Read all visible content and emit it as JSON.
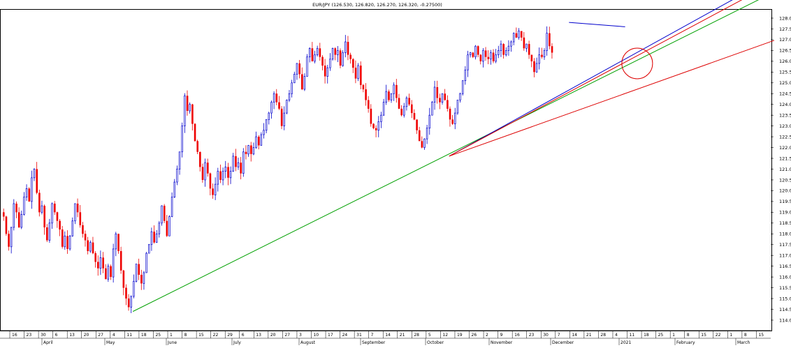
{
  "chart_data": {
    "type": "candlestick",
    "title": "EUR/JPY (126.530, 126.820, 126.270, 126.320, -0.27500)",
    "y_axis": {
      "position": "right",
      "range": [
        114.0,
        128.0
      ],
      "ticks": [
        "128.0",
        "127.5",
        "127.0",
        "126.5",
        "126.0",
        "125.5",
        "125.0",
        "124.5",
        "124.0",
        "123.5",
        "123.0",
        "122.5",
        "122.0",
        "121.5",
        "121.0",
        "120.5",
        "120.0",
        "119.5",
        "119.0",
        "118.5",
        "118.0",
        "117.5",
        "117.0",
        "116.5",
        "116.0",
        "115.5",
        "115.0",
        "114.5",
        "114.0"
      ]
    },
    "x_axis": {
      "day_ticks": [
        "16",
        "23",
        "30",
        "6",
        "13",
        "20",
        "27",
        "4",
        "11",
        "18",
        "25",
        "1",
        "8",
        "15",
        "22",
        "29",
        "6",
        "13",
        "20",
        "27",
        "3",
        "10",
        "17",
        "24",
        "31",
        "7",
        "14",
        "21",
        "28",
        "5",
        "12",
        "19",
        "26",
        "2",
        "9",
        "16",
        "23",
        "30",
        "7",
        "14",
        "21",
        "28",
        "4",
        "11",
        "18",
        "25",
        "1",
        "8",
        "15",
        "22",
        "1",
        "8",
        "15"
      ],
      "month_labels": [
        "April",
        "May",
        "June",
        "July",
        "August",
        "September",
        "October",
        "November",
        "December",
        "2021",
        "February",
        "March"
      ]
    },
    "series": [
      {
        "closes": [
          118.8,
          118.0,
          117.4,
          118.3,
          119.4,
          119.0,
          118.3,
          118.9,
          119.7,
          120.1,
          119.5,
          120.6,
          121.0,
          119.9,
          119.0,
          119.3,
          118.3,
          117.7,
          118.5,
          119.4,
          119.0,
          118.6,
          118.2,
          117.4,
          117.9,
          117.3,
          117.9,
          118.6,
          119.4,
          119.0,
          118.4,
          118.0,
          117.7,
          117.2,
          117.6,
          117.1,
          116.7,
          116.4,
          116.9,
          116.4,
          115.9,
          116.5,
          116.0,
          117.3,
          118.0,
          117.2,
          116.3,
          115.5,
          115.0,
          114.6,
          115.1,
          115.8,
          116.6,
          116.1,
          115.7,
          116.2,
          117.1,
          117.5,
          118.1,
          117.6,
          118.0,
          118.5,
          119.3,
          118.6,
          117.9,
          118.8,
          119.7,
          120.4,
          121.0,
          121.8,
          123.0,
          124.4,
          123.7,
          124.0,
          123.1,
          122.3,
          121.8,
          121.1,
          120.5,
          121.3,
          120.8,
          120.1,
          119.8,
          120.3,
          120.9,
          120.5,
          120.9,
          121.1,
          120.6,
          120.9,
          121.6,
          121.1,
          121.3,
          120.8,
          121.8,
          121.7,
          122.1,
          121.7,
          122.0,
          122.5,
          122.1,
          122.6,
          122.8,
          123.3,
          123.6,
          124.1,
          124.5,
          124.1,
          123.8,
          123.0,
          123.6,
          124.2,
          124.5,
          125.0,
          125.4,
          125.9,
          125.4,
          124.7,
          125.3,
          126.2,
          126.6,
          126.0,
          126.3,
          126.6,
          126.2,
          125.8,
          125.3,
          125.7,
          126.1,
          126.6,
          126.3,
          126.5,
          125.8,
          126.4,
          126.9,
          126.3,
          126.1,
          125.7,
          125.2,
          125.8,
          124.9,
          124.7,
          124.2,
          123.8,
          123.1,
          122.9,
          122.8,
          123.2,
          123.5,
          124.1,
          124.6,
          124.2,
          124.5,
          124.9,
          124.3,
          123.8,
          123.5,
          123.9,
          124.3,
          124.0,
          123.6,
          123.3,
          122.8,
          122.3,
          122.0,
          122.4,
          122.9,
          123.5,
          124.1,
          124.8,
          124.3,
          124.1,
          124.5,
          124.2,
          123.8,
          123.3,
          123.1,
          123.6,
          124.2,
          124.5,
          125.1,
          125.6,
          126.3,
          126.4,
          126.2,
          126.7,
          126.3,
          126.0,
          126.5,
          126.2,
          126.1,
          126.4,
          126.0,
          126.3,
          126.5,
          126.8,
          126.3,
          126.5,
          126.7,
          126.9,
          127.3,
          127.1,
          127.4,
          127.1,
          126.6,
          126.8,
          126.3,
          126.0,
          125.5,
          125.9,
          126.3,
          126.2,
          126.5,
          127.3,
          126.7,
          126.4
        ],
        "volatility": 0.35
      }
    ],
    "trendlines": [
      {
        "color": "#00a000",
        "from": {
          "bar": 51,
          "price": 114.4
        },
        "to": {
          "bar": 270,
          "price": 127.3
        }
      },
      {
        "color": "#0000cc",
        "from": {
          "bar": 175,
          "price": 121.6
        },
        "to": {
          "bar": 270,
          "price": 127.8
        }
      },
      {
        "color": "#dd0000",
        "from": {
          "bar": 175,
          "price": 121.6
        },
        "to": {
          "bar": 270,
          "price": 127.6
        }
      },
      {
        "color": "#dd0000",
        "from": {
          "bar": 175,
          "price": 121.6
        },
        "to": {
          "bar": 270,
          "price": 125.6
        }
      },
      {
        "color": "#0000cc",
        "from": {
          "bar": 222,
          "price": 127.8
        },
        "to": {
          "bar": 244,
          "price": 127.6
        }
      }
    ],
    "annotations": [
      {
        "type": "circle",
        "color": "#dd0000",
        "center": {
          "bar": 246,
          "price": 125.9
        }
      }
    ],
    "up_color": "#0000cc",
    "down_color": "#ee0000",
    "grid": false,
    "background": "#ffffff"
  }
}
